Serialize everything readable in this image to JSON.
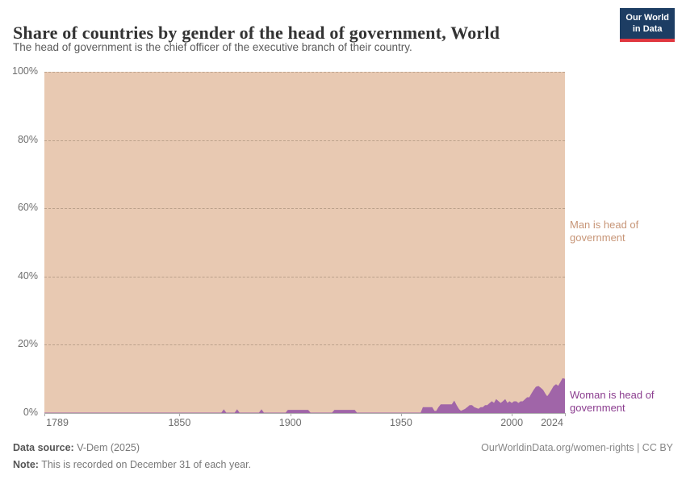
{
  "header": {
    "title": "Share of countries by gender of the head of government, World",
    "subtitle": "The head of government is the chief officer of the executive branch of their country.",
    "logo_line1": "Our World",
    "logo_line2": "in Data",
    "logo_bg": "#1d3d63",
    "logo_accent": "#e0373f"
  },
  "chart_data": {
    "type": "area",
    "stacked_to_100_percent": true,
    "title": "Share of countries by gender of the head of government, World",
    "x_range": [
      1789,
      2024
    ],
    "ylim": [
      0,
      100
    ],
    "y_ticks": [
      "0%",
      "20%",
      "40%",
      "60%",
      "80%",
      "100%"
    ],
    "x_ticks": [
      1789,
      1850,
      1900,
      1950,
      2000,
      2024
    ],
    "grid": "horizontal dashed",
    "legend_position": "inline labels at right edge",
    "series": [
      {
        "name": "Man is head of government",
        "color": "#e8c9b2",
        "label_color": "#c79577",
        "definition": "fills the remainder up to 100%"
      },
      {
        "name": "Woman is head of government",
        "color": "#a065a8",
        "label_color": "#8b3d8f",
        "points_year_pct": [
          [
            1789,
            0
          ],
          [
            1869,
            0
          ],
          [
            1870,
            0.9
          ],
          [
            1871,
            0
          ],
          [
            1875,
            0
          ],
          [
            1876,
            0.9
          ],
          [
            1877,
            0
          ],
          [
            1886,
            0
          ],
          [
            1887,
            0.9
          ],
          [
            1888,
            0
          ],
          [
            1898,
            0
          ],
          [
            1899,
            0.8
          ],
          [
            1908,
            0.8
          ],
          [
            1909,
            0
          ],
          [
            1919,
            0
          ],
          [
            1920,
            0.8
          ],
          [
            1929,
            0.8
          ],
          [
            1930,
            0
          ],
          [
            1959,
            0
          ],
          [
            1960,
            1.6
          ],
          [
            1964,
            1.6
          ],
          [
            1965,
            0.5
          ],
          [
            1966,
            0.5
          ],
          [
            1967,
            1.6
          ],
          [
            1968,
            2.4
          ],
          [
            1973,
            2.4
          ],
          [
            1974,
            3.4
          ],
          [
            1975,
            2.2
          ],
          [
            1976,
            1.1
          ],
          [
            1977,
            0.5
          ],
          [
            1979,
            1.1
          ],
          [
            1980,
            1.6
          ],
          [
            1981,
            2.2
          ],
          [
            1982,
            2.2
          ],
          [
            1983,
            1.6
          ],
          [
            1985,
            1.1
          ],
          [
            1986,
            1.6
          ],
          [
            1987,
            1.6
          ],
          [
            1988,
            2.2
          ],
          [
            1989,
            2.2
          ],
          [
            1990,
            2.8
          ],
          [
            1991,
            3.3
          ],
          [
            1992,
            2.8
          ],
          [
            1993,
            3.9
          ],
          [
            1994,
            3.3
          ],
          [
            1995,
            2.8
          ],
          [
            1996,
            3.3
          ],
          [
            1997,
            3.9
          ],
          [
            1998,
            2.8
          ],
          [
            1999,
            3.3
          ],
          [
            2000,
            2.8
          ],
          [
            2001,
            3.3
          ],
          [
            2002,
            3.3
          ],
          [
            2003,
            2.8
          ],
          [
            2004,
            3.3
          ],
          [
            2005,
            3.3
          ],
          [
            2006,
            3.9
          ],
          [
            2007,
            4.5
          ],
          [
            2008,
            4.5
          ],
          [
            2009,
            5.6
          ],
          [
            2010,
            6.7
          ],
          [
            2011,
            7.6
          ],
          [
            2012,
            7.8
          ],
          [
            2013,
            7.3
          ],
          [
            2014,
            6.7
          ],
          [
            2015,
            5.6
          ],
          [
            2016,
            4.7
          ],
          [
            2017,
            5.6
          ],
          [
            2018,
            6.7
          ],
          [
            2019,
            7.8
          ],
          [
            2020,
            8.3
          ],
          [
            2021,
            7.8
          ],
          [
            2022,
            8.9
          ],
          [
            2023,
            10.1
          ],
          [
            2024,
            9.9
          ]
        ]
      }
    ]
  },
  "footer": {
    "data_source_label": "Data source:",
    "data_source_value": " V-Dem (2025)",
    "note_label": "Note:",
    "note_value": " This is recorded on December 31 of each year.",
    "link": "OurWorldinData.org/women-rights | CC BY"
  }
}
